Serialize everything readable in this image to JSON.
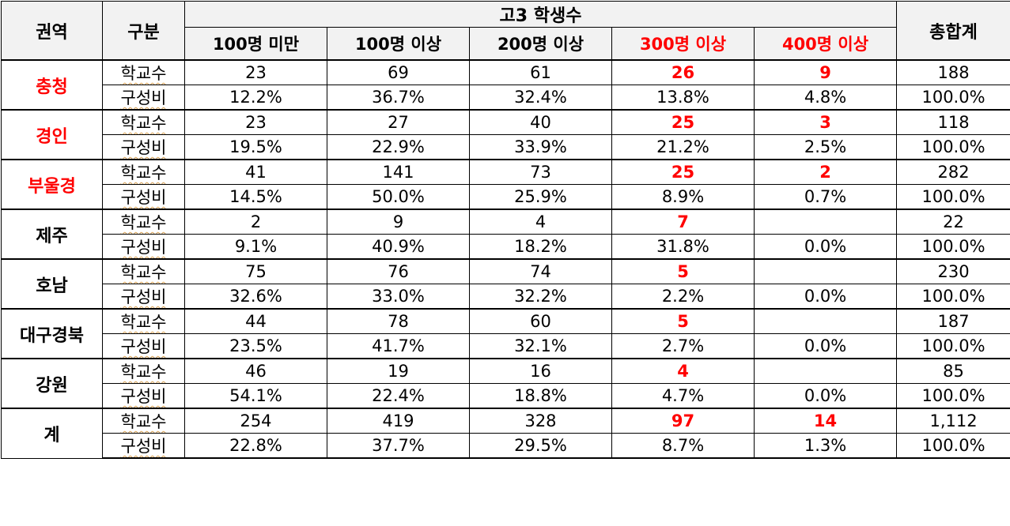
{
  "header": {
    "region": "권역",
    "kind": "구분",
    "group": "고3 학생수",
    "total": "총합계",
    "columns": [
      {
        "label": "100명 미만",
        "highlight": false
      },
      {
        "label": "100명 이상",
        "highlight": false
      },
      {
        "label": "200명 이상",
        "highlight": false
      },
      {
        "label": "300명 이상",
        "highlight": true
      },
      {
        "label": "400명 이상",
        "highlight": true
      }
    ]
  },
  "rows": [
    {
      "region": "충청",
      "region_red": true,
      "count_label": "학교수",
      "ratio_label": "구성비",
      "counts": [
        "23",
        "69",
        "61",
        "26",
        "9"
      ],
      "count_total": "188",
      "ratios": [
        "12.2%",
        "36.7%",
        "32.4%",
        "13.8%",
        "4.8%"
      ],
      "ratio_total": "100.0%"
    },
    {
      "region": "경인",
      "region_red": true,
      "count_label": "학교수",
      "ratio_label": "구성비",
      "counts": [
        "23",
        "27",
        "40",
        "25",
        "3"
      ],
      "count_total": "118",
      "ratios": [
        "19.5%",
        "22.9%",
        "33.9%",
        "21.2%",
        "2.5%"
      ],
      "ratio_total": "100.0%"
    },
    {
      "region": "부울경",
      "region_red": true,
      "count_label": "학교수",
      "ratio_label": "구성비",
      "counts": [
        "41",
        "141",
        "73",
        "25",
        "2"
      ],
      "count_total": "282",
      "ratios": [
        "14.5%",
        "50.0%",
        "25.9%",
        "8.9%",
        "0.7%"
      ],
      "ratio_total": "100.0%"
    },
    {
      "region": "제주",
      "region_red": false,
      "count_label": "학교수",
      "ratio_label": "구성비",
      "counts": [
        "2",
        "9",
        "4",
        "7",
        ""
      ],
      "count_total": "22",
      "ratios": [
        "9.1%",
        "40.9%",
        "18.2%",
        "31.8%",
        "0.0%"
      ],
      "ratio_total": "100.0%"
    },
    {
      "region": "호남",
      "region_red": false,
      "count_label": "학교수",
      "ratio_label": "구성비",
      "counts": [
        "75",
        "76",
        "74",
        "5",
        ""
      ],
      "count_total": "230",
      "ratios": [
        "32.6%",
        "33.0%",
        "32.2%",
        "2.2%",
        "0.0%"
      ],
      "ratio_total": "100.0%"
    },
    {
      "region": "대구경북",
      "region_red": false,
      "count_label": "학교수",
      "ratio_label": "구성비",
      "counts": [
        "44",
        "78",
        "60",
        "5",
        ""
      ],
      "count_total": "187",
      "ratios": [
        "23.5%",
        "41.7%",
        "32.1%",
        "2.7%",
        "0.0%"
      ],
      "ratio_total": "100.0%"
    },
    {
      "region": "강원",
      "region_red": false,
      "count_label": "학교수",
      "ratio_label": "구성비",
      "counts": [
        "46",
        "19",
        "16",
        "4",
        ""
      ],
      "count_total": "85",
      "ratios": [
        "54.1%",
        "22.4%",
        "18.8%",
        "4.7%",
        "0.0%"
      ],
      "ratio_total": "100.0%"
    },
    {
      "region": "계",
      "region_red": false,
      "count_label": "학교수",
      "ratio_label": "구성비",
      "counts": [
        "254",
        "419",
        "328",
        "97",
        "14"
      ],
      "count_total": "1,112",
      "ratios": [
        "22.8%",
        "37.7%",
        "29.5%",
        "8.7%",
        "1.3%"
      ],
      "ratio_total": "100.0%"
    }
  ],
  "colors": {
    "highlight": "#ff0000",
    "header_bg": "#f2f2f2"
  }
}
